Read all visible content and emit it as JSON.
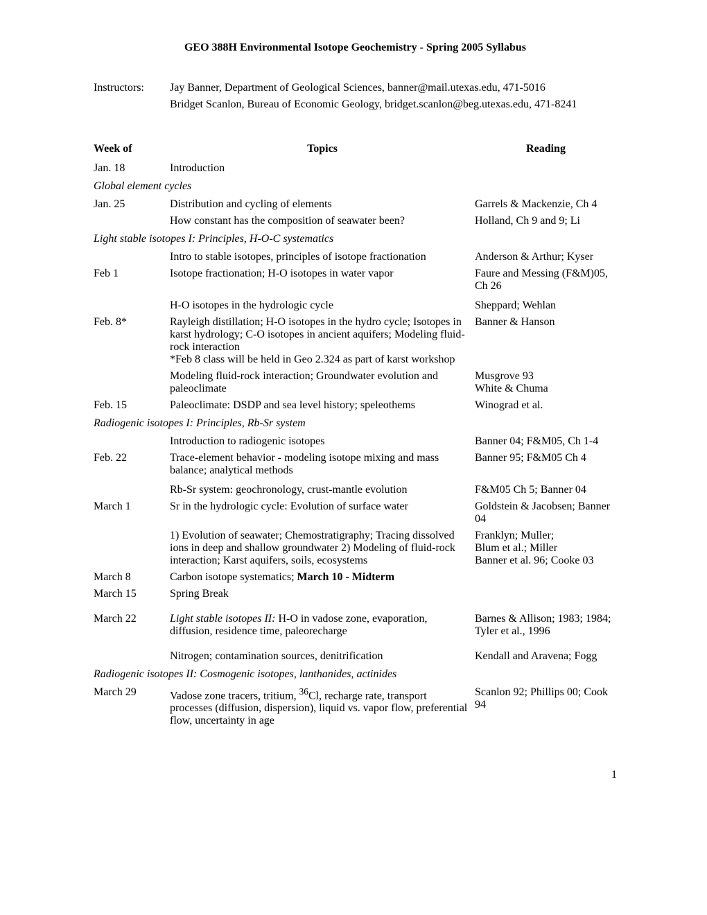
{
  "title": "GEO 388H   Environmental Isotope Geochemistry - Spring 2005 Syllabus",
  "instructors": {
    "label": "Instructors:",
    "names": [
      "Jay Banner, Department of Geological Sciences, banner@mail.utexas.edu, 471-5016",
      "Bridget Scanlon, Bureau of Economic Geology, bridget.scanlon@beg.utexas.edu, 471-8241"
    ]
  },
  "headers": {
    "week": "Week of",
    "topics": "Topics",
    "reading": "Reading"
  },
  "sections": {
    "s0": {
      "heading": ""
    },
    "s1": {
      "heading": "Global element cycles"
    },
    "s2": {
      "heading": "Light stable isotopes I: Principles, H-O-C systematics"
    },
    "s3": {
      "heading": "Radiogenic isotopes I: Principles, Rb-Sr system"
    },
    "s4": {
      "heading": "Radiogenic isotopes II: Cosmogenic isotopes, lanthanides, actinides"
    }
  },
  "rows": {
    "r0": {
      "week": "Jan. 18",
      "topic": "Introduction",
      "reading": ""
    },
    "r1": {
      "week": "Jan. 25",
      "topic": "Distribution and cycling of elements",
      "reading": "Garrels & Mackenzie, Ch 4"
    },
    "r2": {
      "week": "",
      "topic": "How constant has the composition of seawater been?",
      "reading": "Holland, Ch 9 and 9; Li"
    },
    "r3": {
      "week": "",
      "topic": "Intro to stable isotopes, principles of isotope fractionation",
      "reading": "Anderson & Arthur; Kyser"
    },
    "r4": {
      "week": "Feb 1",
      "topic": "Isotope fractionation; H-O isotopes in water vapor",
      "reading": "Faure and Messing (F&M)05, Ch 26"
    },
    "r5": {
      "week": "",
      "topic": "H-O isotopes in the hydrologic cycle",
      "reading": "Sheppard; Wehlan"
    },
    "r6": {
      "week": "Feb. 8*",
      "topic": "Rayleigh distillation; H-O isotopes in the hydro cycle; Isotopes in karst hydrology; C-O isotopes in ancient aquifers; Modeling fluid-rock interaction\n*Feb 8 class will be held in Geo 2.324 as part of karst workshop",
      "reading": "Banner & Hanson"
    },
    "r7": {
      "week": "",
      "topic": "Modeling fluid-rock interaction; Groundwater evolution and paleoclimate",
      "reading": "Musgrove 93\nWhite & Chuma"
    },
    "r8": {
      "week": "Feb. 15",
      "topic": "Paleoclimate: DSDP and sea level history; speleothems",
      "reading": "Winograd et al."
    },
    "r9": {
      "week": "",
      "topic": "Introduction to radiogenic isotopes",
      "reading": "Banner 04; F&M05, Ch 1-4"
    },
    "r10": {
      "week": "Feb. 22",
      "topic": "Trace-element behavior - modeling isotope mixing and mass balance; analytical methods",
      "reading": "Banner 95; F&M05 Ch 4"
    },
    "r11": {
      "week": "",
      "topic": "Rb-Sr system:  geochronology, crust-mantle evolution",
      "reading": "F&M05 Ch 5; Banner 04"
    },
    "r12": {
      "week": "March 1",
      "topic": "Sr in the hydrologic cycle: Evolution of surface water",
      "reading": "Goldstein & Jacobsen; Banner 04"
    },
    "r13": {
      "week": "",
      "topic": "1) Evolution of seawater; Chemostratigraphy; Tracing dissolved ions in deep and shallow groundwater 2) Modeling of fluid-rock interaction; Karst aquifers, soils, ecosystems",
      "reading": "Franklyn; Muller;\nBlum et al.; Miller\nBanner et al. 96; Cooke 03"
    },
    "r14": {
      "week": "March 8",
      "topic_pre": "Carbon isotope systematics; ",
      "topic_bold": "March 10 - Midterm",
      "reading": ""
    },
    "r15": {
      "week": "March 15",
      "topic": "Spring Break",
      "reading": ""
    },
    "r16": {
      "week": "March 22",
      "topic_italic": "Light stable isotopes II:",
      "topic_rest": " H-O in vadose zone, evaporation, diffusion, residence time, paleorecharge",
      "reading": "Barnes & Allison; 1983; 1984; Tyler et al., 1996"
    },
    "r17": {
      "week": "",
      "topic": "Nitrogen; contamination sources, denitrification",
      "reading": "Kendall and Aravena; Fogg"
    },
    "r18": {
      "week": "March 29",
      "topic_pre": "Vadose zone tracers, tritium, ",
      "topic_sup": "36",
      "topic_rest": "Cl, recharge rate, transport processes (diffusion, dispersion), liquid vs. vapor flow, preferential flow, uncertainty in age",
      "reading": "Scanlon 92; Phillips 00; Cook 94"
    }
  },
  "page_number": "1"
}
